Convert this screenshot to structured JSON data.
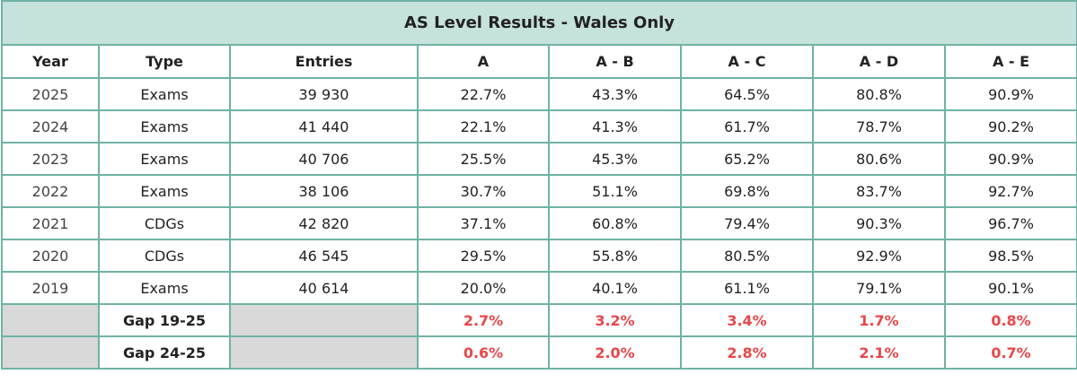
{
  "title": "AS Level Results - Wales Only",
  "headers": [
    "Year",
    "Type",
    "Entries",
    "A",
    "A - B",
    "A - C",
    "A - D",
    "A - E"
  ],
  "rows": [
    {
      "year": "2025",
      "type": "Exams",
      "entries": "39 930",
      "a": "22.7%",
      "ab": "43.3%",
      "ac": "64.5%",
      "ad": "80.8%",
      "ae": "90.9%"
    },
    {
      "year": "2024",
      "type": "Exams",
      "entries": "41 440",
      "a": "22.1%",
      "ab": "41.3%",
      "ac": "61.7%",
      "ad": "78.7%",
      "ae": "90.2%"
    },
    {
      "year": "2023",
      "type": "Exams",
      "entries": "40 706",
      "a": "25.5%",
      "ab": "45.3%",
      "ac": "65.2%",
      "ad": "80.6%",
      "ae": "90.9%"
    },
    {
      "year": "2022",
      "type": "Exams",
      "entries": "38 106",
      "a": "30.7%",
      "ab": "51.1%",
      "ac": "69.8%",
      "ad": "83.7%",
      "ae": "92.7%"
    },
    {
      "year": "2021",
      "type": "CDGs",
      "entries": "42 820",
      "a": "37.1%",
      "ab": "60.8%",
      "ac": "79.4%",
      "ad": "90.3%",
      "ae": "96.7%"
    },
    {
      "year": "2020",
      "type": "CDGs",
      "entries": "46 545",
      "a": "29.5%",
      "ab": "55.8%",
      "ac": "80.5%",
      "ad": "92.9%",
      "ae": "98.5%"
    },
    {
      "year": "2019",
      "type": "Exams",
      "entries": "40 614",
      "a": "20.0%",
      "ab": "40.1%",
      "ac": "61.1%",
      "ad": "79.1%",
      "ae": "90.1%"
    }
  ],
  "gaps": [
    {
      "label": "Gap 19-25",
      "a": "2.7%",
      "ab": "3.2%",
      "ac": "3.4%",
      "ad": "1.7%",
      "ae": "0.8%"
    },
    {
      "label": "Gap 24-25",
      "a": "0.6%",
      "ab": "2.0%",
      "ac": "2.8%",
      "ad": "2.1%",
      "ae": "0.7%"
    }
  ],
  "colors": {
    "border": "#6fb3a5",
    "title_bg": "#c5e2dc",
    "gap_bg": "#d9d9d9",
    "gap_value": "#e8474a"
  }
}
